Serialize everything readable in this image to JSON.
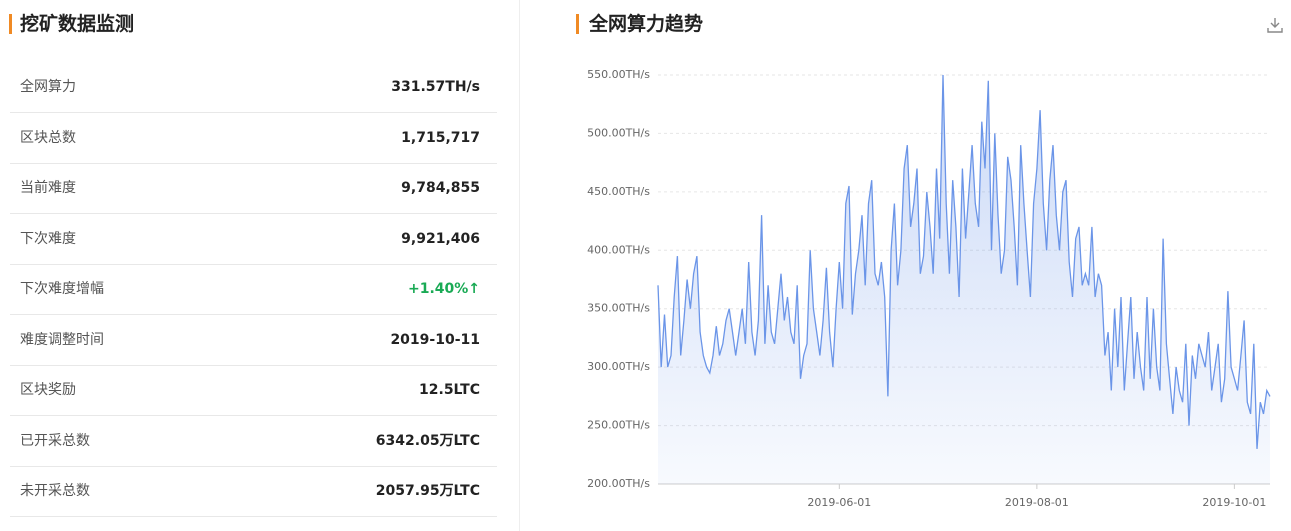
{
  "monitor": {
    "title": "挖矿数据监测",
    "rows": [
      [
        "全网算力",
        "331.57TH/s"
      ],
      [
        "区块总数",
        "1,715,717"
      ],
      [
        "当前难度",
        "9,784,855"
      ],
      [
        "下次难度",
        "9,921,406"
      ],
      [
        "下次难度增幅",
        "+1.40%↑"
      ],
      [
        "难度调整时间",
        "2019-10-11"
      ],
      [
        "区块奖励",
        "12.5LTC"
      ],
      [
        "已开采总数",
        "6342.05万LTC"
      ],
      [
        "未开采总数",
        "2057.95万LTC"
      ]
    ]
  },
  "chart_data": {
    "type": "line",
    "title": "全网算力趋势",
    "color": "#6b95e8",
    "grid": true,
    "x": [
      "2019-04-06",
      "2019-04-07",
      "2019-04-08",
      "2019-04-09",
      "2019-04-10",
      "2019-04-11",
      "2019-04-12",
      "2019-04-13",
      "2019-04-14",
      "2019-04-15",
      "2019-04-16",
      "2019-04-17",
      "2019-04-18",
      "2019-04-19",
      "2019-04-20",
      "2019-04-21",
      "2019-04-22",
      "2019-04-23",
      "2019-04-24",
      "2019-04-25",
      "2019-04-26",
      "2019-04-27",
      "2019-04-28",
      "2019-04-29",
      "2019-04-30",
      "2019-05-01",
      "2019-05-02",
      "2019-05-03",
      "2019-05-04",
      "2019-05-05",
      "2019-05-06",
      "2019-05-07",
      "2019-05-08",
      "2019-05-09",
      "2019-05-10",
      "2019-05-11",
      "2019-05-12",
      "2019-05-13",
      "2019-05-14",
      "2019-05-15",
      "2019-05-16",
      "2019-05-17",
      "2019-05-18",
      "2019-05-19",
      "2019-05-20",
      "2019-05-21",
      "2019-05-22",
      "2019-05-23",
      "2019-05-24",
      "2019-05-25",
      "2019-05-26",
      "2019-05-27",
      "2019-05-28",
      "2019-05-29",
      "2019-05-30",
      "2019-05-31",
      "2019-06-01",
      "2019-06-02",
      "2019-06-03",
      "2019-06-04",
      "2019-06-05",
      "2019-06-06",
      "2019-06-07",
      "2019-06-08",
      "2019-06-09",
      "2019-06-10",
      "2019-06-11",
      "2019-06-12",
      "2019-06-13",
      "2019-06-14",
      "2019-06-15",
      "2019-06-16",
      "2019-06-17",
      "2019-06-18",
      "2019-06-19",
      "2019-06-20",
      "2019-06-21",
      "2019-06-22",
      "2019-06-23",
      "2019-06-24",
      "2019-06-25",
      "2019-06-26",
      "2019-06-27",
      "2019-06-28",
      "2019-06-29",
      "2019-06-30",
      "2019-07-01",
      "2019-07-02",
      "2019-07-03",
      "2019-07-04",
      "2019-07-05",
      "2019-07-06",
      "2019-07-07",
      "2019-07-08",
      "2019-07-09",
      "2019-07-10",
      "2019-07-11",
      "2019-07-12",
      "2019-07-13",
      "2019-07-14",
      "2019-07-15",
      "2019-07-16",
      "2019-07-17",
      "2019-07-18",
      "2019-07-19",
      "2019-07-20",
      "2019-07-21",
      "2019-07-22",
      "2019-07-23",
      "2019-07-24",
      "2019-07-25",
      "2019-07-26",
      "2019-07-27",
      "2019-07-28",
      "2019-07-29",
      "2019-07-30",
      "2019-07-31",
      "2019-08-01",
      "2019-08-02",
      "2019-08-03",
      "2019-08-04",
      "2019-08-05",
      "2019-08-06",
      "2019-08-07",
      "2019-08-08",
      "2019-08-09",
      "2019-08-10",
      "2019-08-11",
      "2019-08-12",
      "2019-08-13",
      "2019-08-14",
      "2019-08-15",
      "2019-08-16",
      "2019-08-17",
      "2019-08-18",
      "2019-08-19",
      "2019-08-20",
      "2019-08-21",
      "2019-08-22",
      "2019-08-23",
      "2019-08-24",
      "2019-08-25",
      "2019-08-26",
      "2019-08-27",
      "2019-08-28",
      "2019-08-29",
      "2019-08-30",
      "2019-08-31",
      "2019-09-01",
      "2019-09-02",
      "2019-09-03",
      "2019-09-04",
      "2019-09-05",
      "2019-09-06",
      "2019-09-07",
      "2019-09-08",
      "2019-09-09",
      "2019-09-10",
      "2019-09-11",
      "2019-09-12",
      "2019-09-13",
      "2019-09-14",
      "2019-09-15",
      "2019-09-16",
      "2019-09-17",
      "2019-09-18",
      "2019-09-19",
      "2019-09-20",
      "2019-09-21",
      "2019-09-22",
      "2019-09-23",
      "2019-09-24",
      "2019-09-25",
      "2019-09-26",
      "2019-09-27",
      "2019-09-28",
      "2019-09-29",
      "2019-09-30",
      "2019-10-01",
      "2019-10-02",
      "2019-10-03",
      "2019-10-04",
      "2019-10-05",
      "2019-10-06",
      "2019-10-07",
      "2019-10-08",
      "2019-10-09",
      "2019-10-10",
      "2019-10-11",
      "2019-10-12"
    ],
    "values": [
      370,
      300,
      345,
      300,
      310,
      360,
      395,
      310,
      340,
      375,
      350,
      380,
      395,
      330,
      310,
      300,
      295,
      310,
      335,
      310,
      320,
      340,
      350,
      330,
      310,
      330,
      350,
      320,
      390,
      330,
      310,
      340,
      430,
      320,
      370,
      330,
      320,
      350,
      380,
      340,
      360,
      330,
      320,
      370,
      290,
      310,
      320,
      400,
      350,
      330,
      310,
      340,
      385,
      330,
      300,
      350,
      390,
      350,
      440,
      455,
      345,
      380,
      400,
      430,
      370,
      440,
      460,
      380,
      370,
      390,
      360,
      275,
      400,
      440,
      370,
      400,
      470,
      490,
      420,
      440,
      470,
      380,
      395,
      450,
      420,
      380,
      470,
      410,
      550,
      440,
      380,
      460,
      420,
      360,
      470,
      410,
      450,
      490,
      440,
      420,
      510,
      470,
      545,
      400,
      500,
      430,
      380,
      400,
      480,
      460,
      420,
      370,
      490,
      440,
      400,
      360,
      440,
      470,
      520,
      440,
      400,
      460,
      490,
      430,
      400,
      450,
      460,
      390,
      360,
      410,
      420,
      370,
      380,
      370,
      420,
      360,
      380,
      370,
      310,
      330,
      280,
      350,
      300,
      360,
      280,
      320,
      360,
      290,
      330,
      300,
      280,
      360,
      290,
      350,
      300,
      280,
      410,
      320,
      290,
      260,
      300,
      280,
      270,
      320,
      250,
      310,
      290,
      320,
      310,
      300,
      330,
      280,
      300,
      320,
      270,
      290,
      365,
      300,
      290,
      280,
      310,
      340,
      270,
      260,
      320,
      230,
      270,
      260,
      280,
      275
    ],
    "xlim": [
      "2019-04-06",
      "2019-10-12"
    ],
    "xticks": [
      "2019-06-01",
      "2019-08-01",
      "2019-10-01"
    ],
    "ylim": [
      200,
      550
    ],
    "yticks": [
      {
        "value": 200,
        "label": "200.00TH/s"
      },
      {
        "value": 250,
        "label": "250.00TH/s"
      },
      {
        "value": 300,
        "label": "300.00TH/s"
      },
      {
        "value": 350,
        "label": "350.00TH/s"
      },
      {
        "value": 400,
        "label": "400.00TH/s"
      },
      {
        "value": 450,
        "label": "450.00TH/s"
      },
      {
        "value": 500,
        "label": "500.00TH/s"
      },
      {
        "value": 550,
        "label": "550.00TH/s"
      }
    ]
  }
}
